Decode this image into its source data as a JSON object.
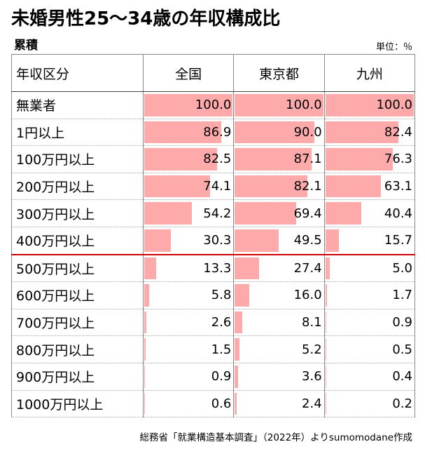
{
  "title": "未婚男性25～34歳の年収構成比",
  "subtitle": "累積",
  "unit_label": "単位：％",
  "footer": "総務省「就業構造基本調査」（2022年）よりsumomodane作成",
  "colors": {
    "bar": "#ffaaaa",
    "separator": "#d00000"
  },
  "chart_data": {
    "type": "table",
    "header": "年収区分",
    "columns": [
      "全国",
      "東京都",
      "九州"
    ],
    "rows": [
      {
        "label": "無業者",
        "values": [
          "100.0",
          "100.0",
          "100.0"
        ]
      },
      {
        "label": "1円以上",
        "values": [
          "86.9",
          "90.0",
          "82.4"
        ]
      },
      {
        "label": "100万円以上",
        "values": [
          "82.5",
          "87.1",
          "76.3"
        ]
      },
      {
        "label": "200万円以上",
        "values": [
          "74.1",
          "82.1",
          "63.1"
        ]
      },
      {
        "label": "300万円以上",
        "values": [
          "54.2",
          "69.4",
          "40.4"
        ]
      },
      {
        "label": "400万円以上",
        "values": [
          "30.3",
          "49.5",
          "15.7"
        ]
      },
      {
        "label": "500万円以上",
        "values": [
          "13.3",
          "27.4",
          "5.0"
        ]
      },
      {
        "label": "600万円以上",
        "values": [
          "5.8",
          "16.0",
          "1.7"
        ]
      },
      {
        "label": "700万円以上",
        "values": [
          "2.6",
          "8.1",
          "0.9"
        ]
      },
      {
        "label": "800万円以上",
        "values": [
          "1.5",
          "5.2",
          "0.5"
        ]
      },
      {
        "label": "900万円以上",
        "values": [
          "0.9",
          "3.6",
          "0.4"
        ]
      },
      {
        "label": "1000万円以上",
        "values": [
          "0.6",
          "2.4",
          "0.2"
        ]
      }
    ],
    "max": 100
  }
}
